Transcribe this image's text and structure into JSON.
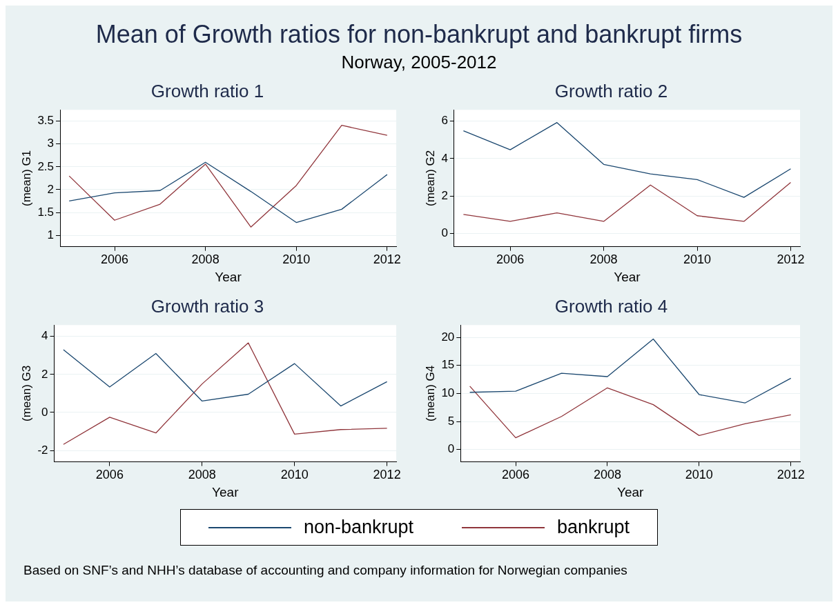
{
  "chart_data": [
    {
      "type": "other",
      "title": "Mean of Growth ratios for non-bankrupt and bankrupt firms",
      "subtitle": "Norway, 2005-2012",
      "annotations": [
        "Based on SNF’s and NHH’s database of accounting and company information for Norwegian companies"
      ]
    },
    {
      "type": "line",
      "title": "Growth ratio 1",
      "xlabel": "Year",
      "ylabel": "(mean) G1",
      "x": [
        2005,
        2006,
        2007,
        2008,
        2009,
        2010,
        2011,
        2012
      ],
      "xlim": [
        2004.8,
        2012.2
      ],
      "xticks": [
        2006,
        2008,
        2010,
        2012
      ],
      "ylim": [
        0.75,
        3.75
      ],
      "yticks": [
        1,
        1.5,
        2,
        2.5,
        3,
        3.5
      ],
      "grid": "y",
      "legend": "bottom",
      "series": [
        {
          "name": "non-bankrupt",
          "color": "#1a476f",
          "values": [
            1.75,
            1.93,
            1.98,
            2.6,
            1.96,
            1.28,
            1.57,
            2.33
          ]
        },
        {
          "name": "bankrupt",
          "color": "#90353b",
          "values": [
            2.3,
            1.33,
            1.68,
            2.56,
            1.18,
            2.09,
            3.41,
            3.19
          ]
        }
      ]
    },
    {
      "type": "line",
      "title": "Growth ratio 2",
      "xlabel": "Year",
      "ylabel": "(mean) G2",
      "x": [
        2005,
        2006,
        2007,
        2008,
        2009,
        2010,
        2011,
        2012
      ],
      "xlim": [
        2004.8,
        2012.2
      ],
      "xticks": [
        2006,
        2008,
        2010,
        2012
      ],
      "ylim": [
        -0.7,
        6.6
      ],
      "yticks": [
        0,
        2,
        4,
        6
      ],
      "grid": "y",
      "series": [
        {
          "color": "#1a476f",
          "values": [
            5.48,
            4.47,
            5.92,
            3.69,
            3.18,
            2.88,
            1.93,
            3.45
          ]
        },
        {
          "color": "#90353b",
          "values": [
            1.02,
            0.65,
            1.1,
            0.65,
            2.59,
            0.95,
            0.65,
            2.73
          ]
        }
      ]
    },
    {
      "type": "line",
      "title": "Growth ratio 3",
      "xlabel": "Year",
      "ylabel": "(mean) G3",
      "x": [
        2005,
        2006,
        2007,
        2008,
        2009,
        2010,
        2011,
        2012
      ],
      "xlim": [
        2004.8,
        2012.2
      ],
      "xticks": [
        2006,
        2008,
        2010,
        2012
      ],
      "ylim": [
        -2.6,
        4.6
      ],
      "yticks": [
        -2,
        0,
        2,
        4
      ],
      "grid": "y",
      "series": [
        {
          "color": "#1a476f",
          "values": [
            3.3,
            1.34,
            3.1,
            0.6,
            0.96,
            2.57,
            0.34,
            1.62
          ]
        },
        {
          "color": "#90353b",
          "values": [
            -1.68,
            -0.25,
            -1.08,
            1.5,
            3.66,
            -1.14,
            -0.9,
            -0.83
          ]
        }
      ]
    },
    {
      "type": "line",
      "title": "Growth ratio 4",
      "xlabel": "Year",
      "ylabel": "(mean) G4",
      "x": [
        2005,
        2006,
        2007,
        2008,
        2009,
        2010,
        2011,
        2012
      ],
      "xlim": [
        2004.8,
        2012.2
      ],
      "xticks": [
        2006,
        2008,
        2010,
        2012
      ],
      "ylim": [
        -2.2,
        22.2
      ],
      "yticks": [
        0,
        5,
        10,
        15,
        20
      ],
      "grid": "y",
      "series": [
        {
          "color": "#1a476f",
          "values": [
            10.2,
            10.4,
            13.6,
            13,
            19.7,
            9.8,
            8.3,
            12.7
          ]
        },
        {
          "color": "#90353b",
          "values": [
            11.3,
            2.1,
            5.9,
            11,
            8,
            2.5,
            4.6,
            6.2
          ]
        }
      ]
    }
  ]
}
